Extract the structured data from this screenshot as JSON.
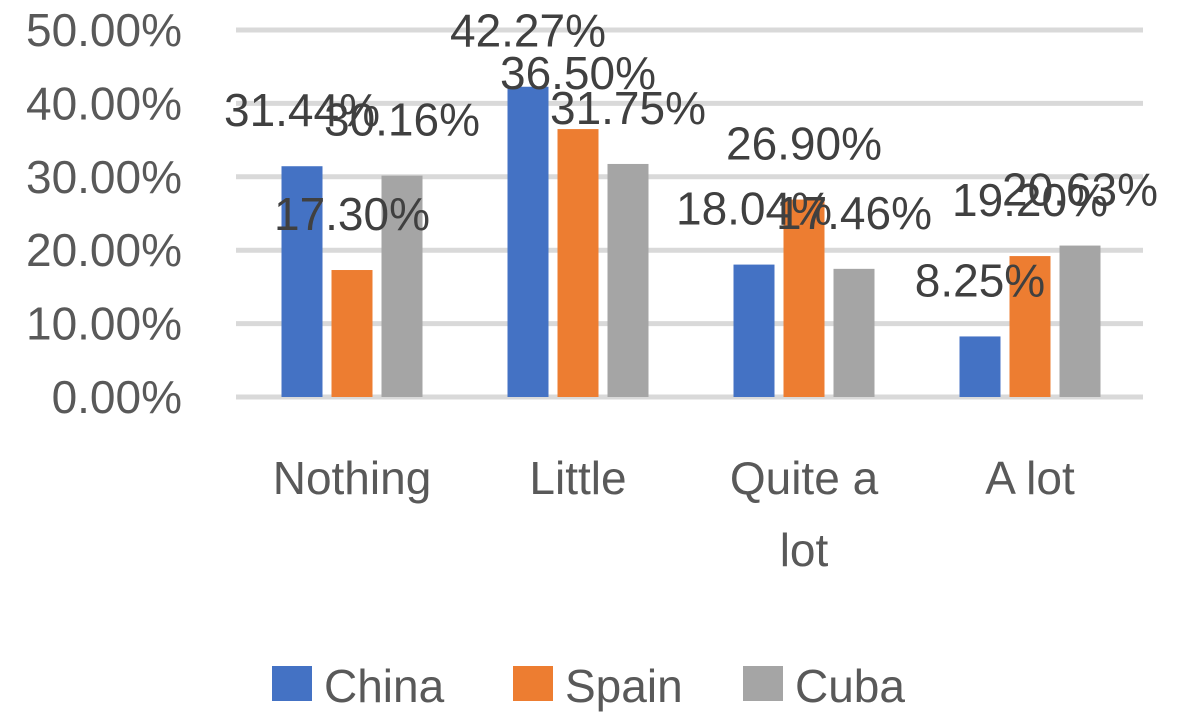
{
  "chart_data": {
    "type": "bar",
    "title": "",
    "xlabel": "",
    "ylabel": "",
    "categories": [
      [
        "Nothing"
      ],
      [
        "Little"
      ],
      [
        "Quite a",
        "lot"
      ],
      [
        "A lot"
      ]
    ],
    "series": [
      {
        "name": "China",
        "color": "#4472c4",
        "values": [
          31.44,
          42.27,
          18.04,
          8.25
        ],
        "labels": [
          "31.44%",
          "42.27%",
          "18.04%",
          "8.25%"
        ]
      },
      {
        "name": "Spain",
        "color": "#ed7d31",
        "values": [
          17.3,
          36.5,
          26.9,
          19.2
        ],
        "labels": [
          "17.30%",
          "36.50%",
          "26.90%",
          "19.20%"
        ]
      },
      {
        "name": "Cuba",
        "color": "#a5a5a5",
        "values": [
          30.16,
          31.75,
          17.46,
          20.63
        ],
        "labels": [
          "30.16%",
          "31.75%",
          "17.46%",
          "20.63%"
        ]
      }
    ],
    "ylim": [
      0,
      50
    ],
    "yticks": [
      0,
      10,
      20,
      30,
      40,
      50
    ],
    "ytick_labels": [
      "0.00%",
      "10.00%",
      "20.00%",
      "30.00%",
      "40.00%",
      "50.00%"
    ],
    "grid": true,
    "legend_position": "bottom"
  }
}
